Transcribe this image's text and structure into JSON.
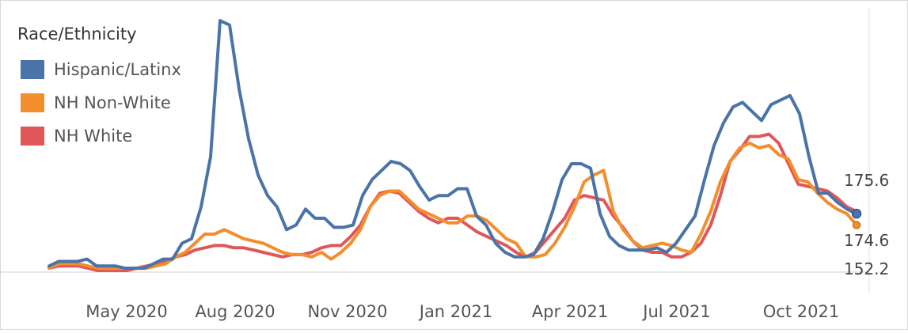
{
  "chart_data": {
    "type": "line",
    "title": "",
    "xlabel": "",
    "ylabel": "",
    "x_ticks": [
      "May 2020",
      "Aug 2020",
      "Nov 2020",
      "Jan 2021",
      "Apr 2021",
      "Jul 2021",
      "Oct 2021"
    ],
    "legend": {
      "title": "Race/Ethnicity",
      "placement": "top-left"
    },
    "grid": false,
    "baseline_label": "152.2",
    "end_labels": [
      "175.6",
      "174.6"
    ],
    "series": [
      {
        "name": "Hispanic/Latinx",
        "color": "#4a74a8",
        "values": [
          2,
          4,
          4,
          4,
          5,
          2,
          2,
          2,
          1,
          1,
          1,
          3,
          5,
          5,
          12,
          14,
          28,
          50,
          110,
          108,
          80,
          58,
          42,
          33,
          28,
          18,
          20,
          27,
          23,
          23,
          19,
          19,
          20,
          33,
          40,
          44,
          48,
          47,
          44,
          37,
          31,
          33,
          33,
          36,
          36,
          24,
          20,
          12,
          8,
          6,
          6,
          7,
          14,
          26,
          40,
          47,
          47,
          45,
          25,
          15,
          11,
          9,
          9,
          9,
          10,
          8,
          12,
          18,
          24,
          40,
          55,
          65,
          72,
          74,
          70,
          66,
          73,
          75,
          77,
          69,
          50,
          34,
          34,
          30,
          27,
          25
        ]
      },
      {
        "name": "NH Non-White",
        "color": "#f28e2b",
        "values": [
          1,
          3,
          3,
          3,
          2,
          1,
          1,
          1,
          1,
          1,
          1,
          2,
          3,
          6,
          8,
          12,
          16,
          16,
          18,
          16,
          14,
          13,
          12,
          10,
          8,
          7,
          7,
          6,
          8,
          5,
          8,
          12,
          18,
          28,
          33,
          35,
          35,
          31,
          27,
          25,
          23,
          21,
          21,
          24,
          24,
          22,
          18,
          14,
          12,
          6,
          6,
          7,
          12,
          19,
          28,
          39,
          42,
          44,
          26,
          18,
          13,
          10,
          11,
          12,
          11,
          9,
          8,
          16,
          26,
          39,
          48,
          54,
          56,
          54,
          55,
          51,
          49,
          40,
          39,
          34,
          30,
          27,
          25,
          20
        ]
      },
      {
        "name": "NH White",
        "color": "#e15759",
        "values": [
          1,
          2,
          2,
          2,
          1,
          0,
          0,
          0,
          0,
          1,
          2,
          3,
          4,
          6,
          7,
          9,
          10,
          11,
          11,
          10,
          10,
          9,
          8,
          7,
          6,
          7,
          7,
          8,
          10,
          11,
          11,
          15,
          20,
          28,
          34,
          35,
          34,
          30,
          26,
          23,
          21,
          23,
          23,
          20,
          17,
          15,
          13,
          11,
          8,
          6,
          8,
          13,
          18,
          23,
          31,
          33,
          32,
          31,
          24,
          19,
          13,
          9,
          8,
          8,
          6,
          6,
          8,
          12,
          20,
          33,
          48,
          53,
          59,
          59,
          60,
          56,
          47,
          38,
          37,
          36,
          35,
          32,
          28,
          26
        ]
      }
    ]
  }
}
